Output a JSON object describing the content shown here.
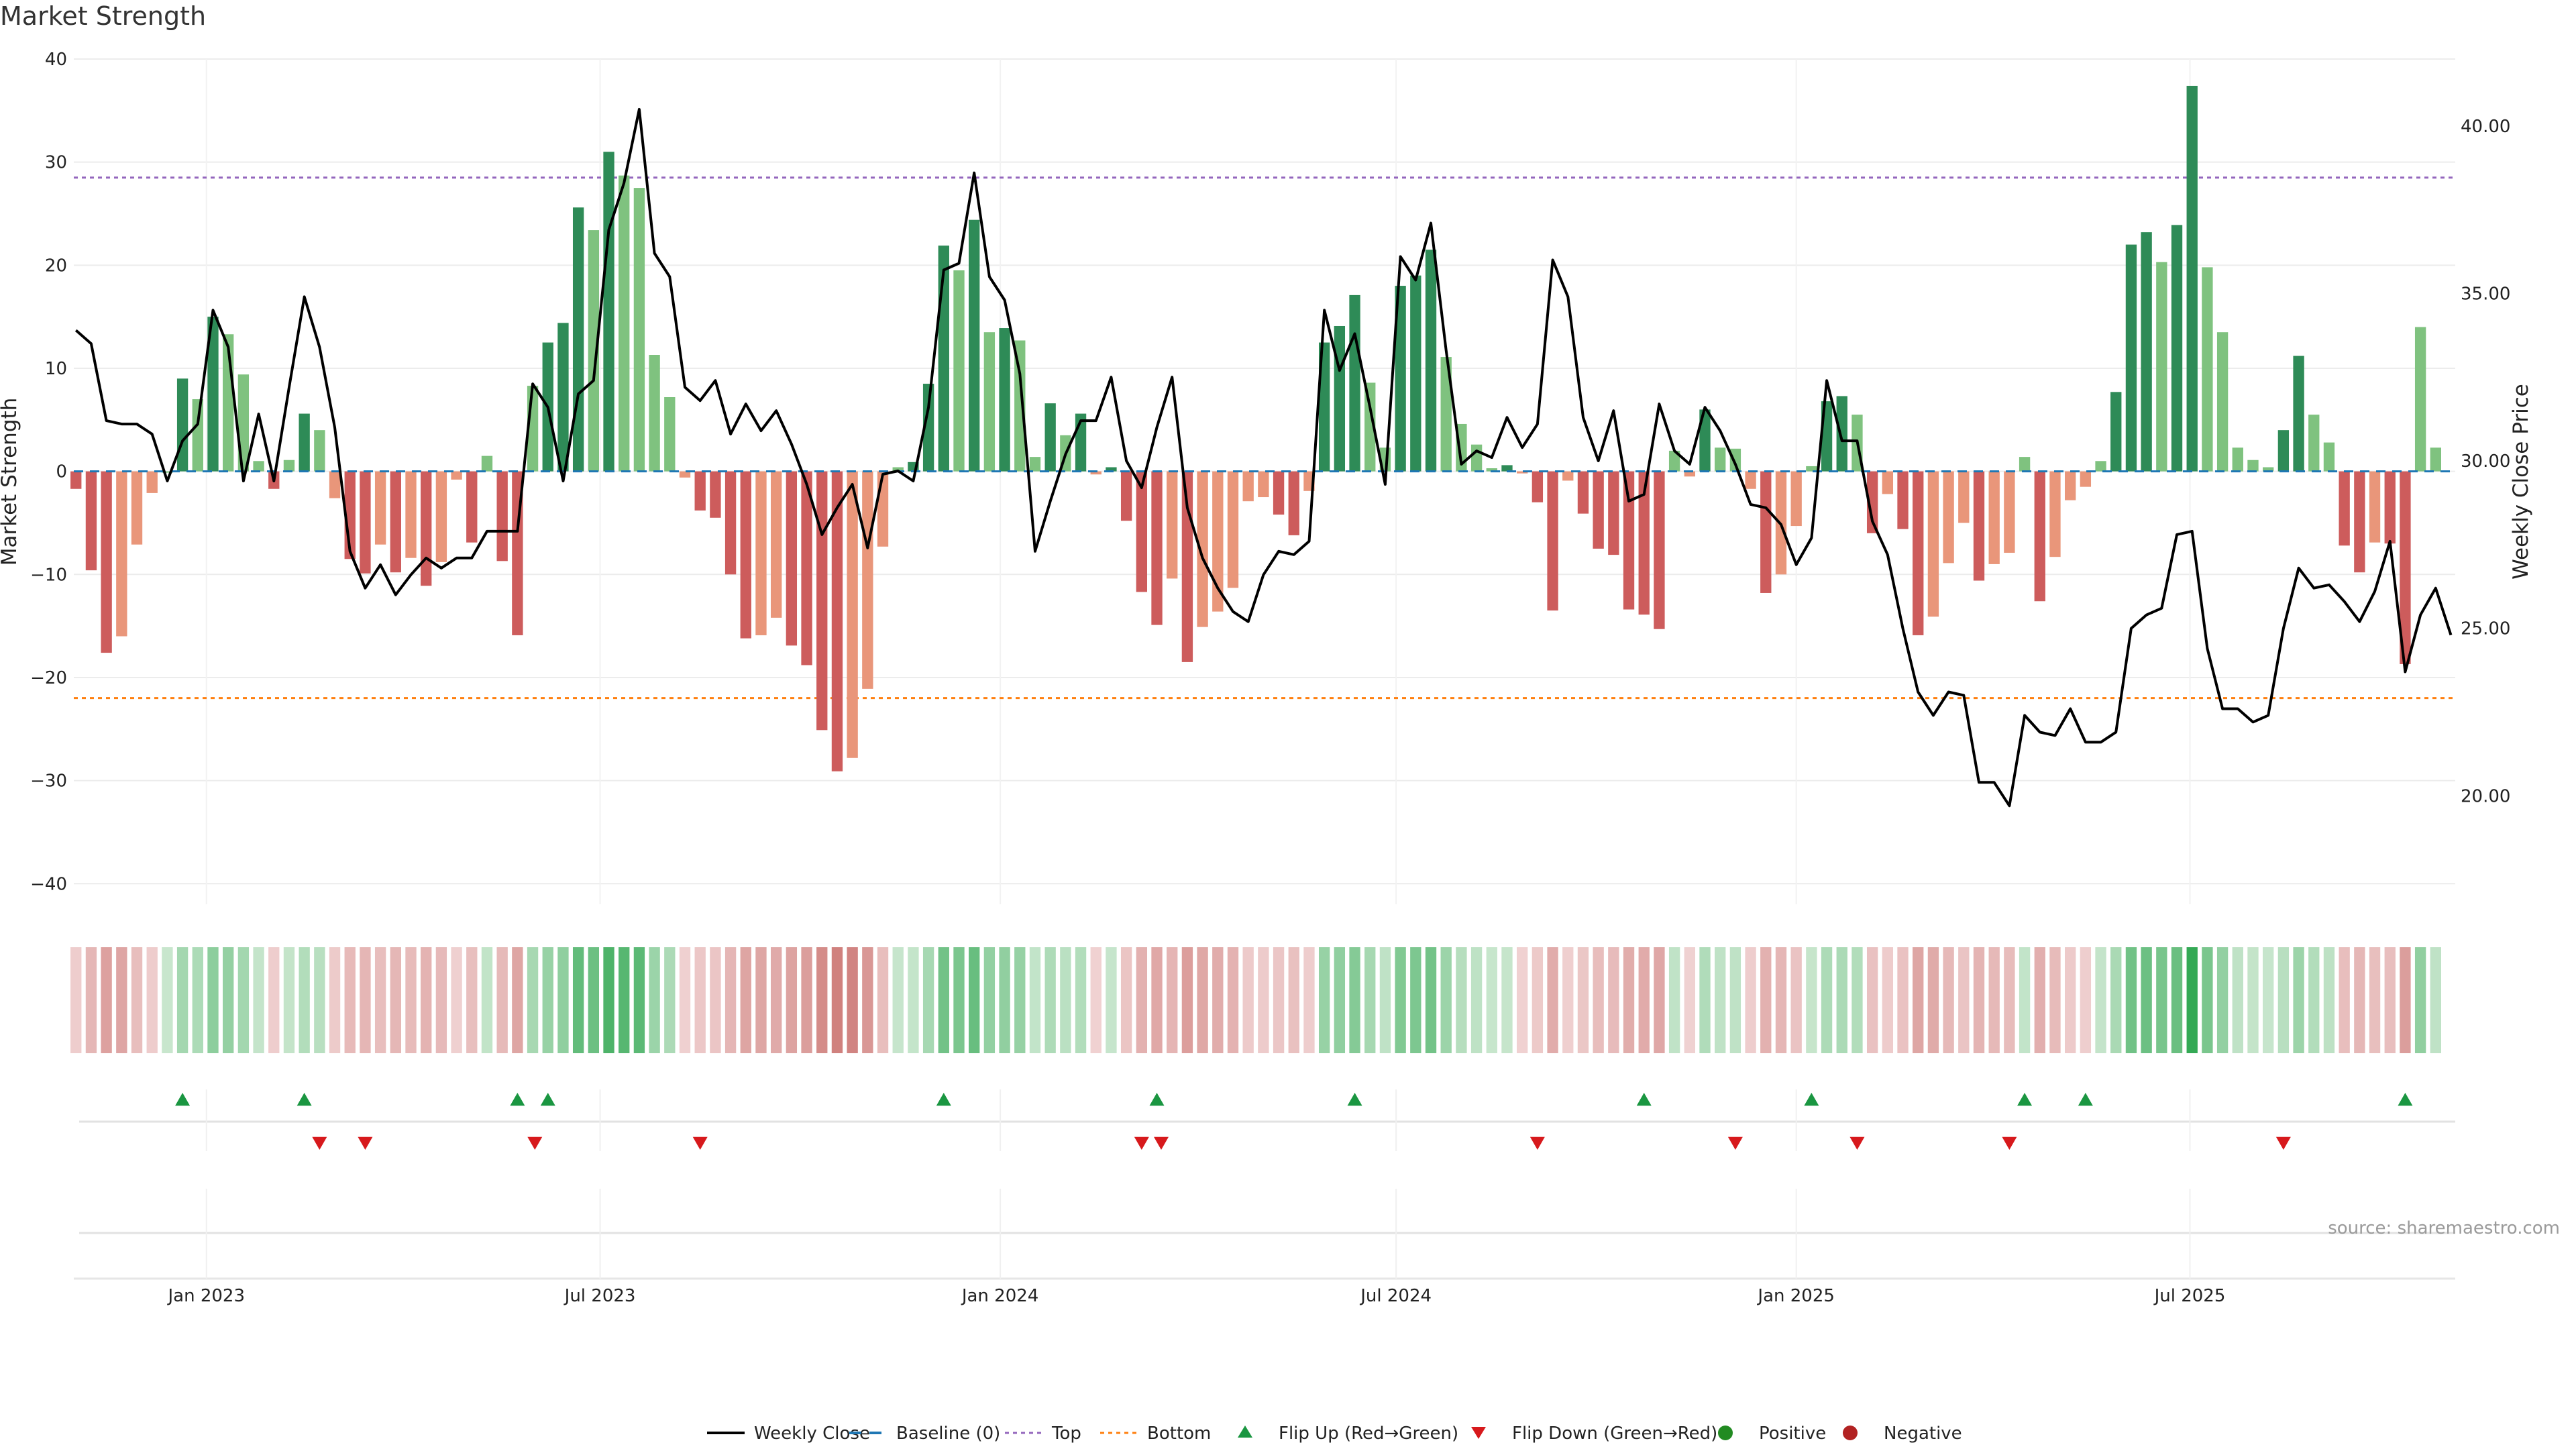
{
  "title": "Market Strength",
  "source": "source: sharemaestro.com",
  "chart_data": {
    "type": "bar",
    "title": "Market Strength",
    "ylabel": "Market Strength",
    "y2label": "Weekly Close Price",
    "ylim": [
      -42,
      40
    ],
    "y2lim": [
      16.76,
      42.0
    ],
    "x_start": "2022-11-01",
    "x_end": "2025-10-31",
    "x_ticks": [
      {
        "date": "2023-01-01",
        "label": "Jan 2023"
      },
      {
        "date": "2023-07-01",
        "label": "Jul 2023"
      },
      {
        "date": "2024-01-01",
        "label": "Jan 2024"
      },
      {
        "date": "2024-07-01",
        "label": "Jul 2024"
      },
      {
        "date": "2025-01-01",
        "label": "Jan 2025"
      },
      {
        "date": "2025-07-01",
        "label": "Jul 2025"
      }
    ],
    "y_ticks": [
      40,
      30,
      20,
      10,
      0,
      -10,
      -20,
      -30,
      -40
    ],
    "y2_ticks": [
      {
        "value": 40.0,
        "label": "40.00"
      },
      {
        "value": 35.0,
        "label": "35.00"
      },
      {
        "value": 30.0,
        "label": "30.00"
      },
      {
        "value": 25.0,
        "label": "25.00"
      },
      {
        "value": 20.0,
        "label": "20.00"
      }
    ],
    "top_level": 28.5,
    "bottom_level": -22.0,
    "grid": true,
    "colors": {
      "strong_pos": "#2e8b57",
      "weak_pos": "#7fc27f",
      "strong_neg": "#cd5c5c",
      "weak_neg": "#e9967a",
      "price": "#000000",
      "baseline": "#1f77b4",
      "top": "#9467bd",
      "bottom": "#ff7f0e",
      "flip_up": "#1a9641",
      "flip_down": "#d7191c",
      "positive": "#228b22",
      "negative": "#b22222"
    },
    "strength_start": "2022-11-02",
    "strength": [
      -1.7,
      -9.6,
      -17.6,
      -16.0,
      -7.1,
      -2.1,
      0,
      9.0,
      7.0,
      15.0,
      13.3,
      9.4,
      1.0,
      -1.7,
      1.1,
      5.6,
      4.0,
      -2.6,
      -8.5,
      -9.9,
      -7.1,
      -9.8,
      -8.4,
      -11.1,
      -8.8,
      -0.8,
      -6.9,
      1.5,
      -8.7,
      -15.9,
      8.3,
      12.5,
      14.4,
      25.6,
      23.4,
      31.0,
      28.7,
      27.5,
      11.3,
      7.2,
      -0.6,
      -3.8,
      -4.5,
      -10.0,
      -16.2,
      -15.9,
      -14.2,
      -16.9,
      -18.8,
      -25.1,
      -29.1,
      -27.8,
      -21.1,
      -7.3,
      0.4,
      0.9,
      8.5,
      21.9,
      19.5,
      24.4,
      13.5,
      13.9,
      12.7,
      1.4,
      6.6,
      3.5,
      5.6,
      -0.3,
      0.4,
      -4.8,
      -11.7,
      -14.9,
      -10.4,
      -18.5,
      -15.1,
      -13.6,
      -11.3,
      -2.9,
      -2.5,
      -4.2,
      -6.2,
      -1.9,
      12.5,
      14.1,
      17.1,
      8.6,
      2.3,
      18.0,
      19.0,
      21.5,
      11.1,
      4.6,
      2.6,
      0.3,
      0.6,
      -0.2,
      -3.0,
      -13.5,
      -0.9,
      -4.1,
      -7.5,
      -8.1,
      -13.4,
      -13.9,
      -15.3,
      2.0,
      -0.5,
      6.0,
      2.3,
      2.2,
      -1.7,
      -11.8,
      -10.0,
      -5.3,
      0.5,
      6.8,
      7.3,
      5.5,
      -6.0,
      -2.2,
      -5.6,
      -15.9,
      -14.1,
      -8.9,
      -5.0,
      -10.6,
      -9.0,
      -7.9,
      1.4,
      -12.6,
      -8.3,
      -2.8,
      -1.5,
      1.0,
      7.7,
      22.0,
      23.2,
      20.3,
      23.9,
      37.4,
      19.8,
      13.5,
      2.3,
      1.1,
      0.4,
      4.0,
      11.2,
      5.5,
      2.8,
      -7.2,
      -9.8,
      -6.9,
      -7.0,
      -18.7,
      14.0,
      2.3
    ],
    "price_start": "2022-11-02",
    "price": [
      33.9,
      33.5,
      31.2,
      31.1,
      31.1,
      30.8,
      29.4,
      30.6,
      31.1,
      34.5,
      33.4,
      29.4,
      31.4,
      29.4,
      32.2,
      34.9,
      33.4,
      31.0,
      27.3,
      26.2,
      26.9,
      26.0,
      26.6,
      27.1,
      26.8,
      27.1,
      27.1,
      27.9,
      27.9,
      27.9,
      32.3,
      31.6,
      29.4,
      32.0,
      32.4,
      36.9,
      38.3,
      40.5,
      36.2,
      35.5,
      32.2,
      31.8,
      32.4,
      30.8,
      31.7,
      30.9,
      31.5,
      30.5,
      29.3,
      27.8,
      28.6,
      29.3,
      27.4,
      29.6,
      29.7,
      29.4,
      31.6,
      35.7,
      35.9,
      38.6,
      35.5,
      34.8,
      32.6,
      27.3,
      28.8,
      30.2,
      31.2,
      31.2,
      32.5,
      30.0,
      29.2,
      31.0,
      32.5,
      28.6,
      27.1,
      26.2,
      25.5,
      25.2,
      26.6,
      27.3,
      27.2,
      27.6,
      34.5,
      32.7,
      33.8,
      31.6,
      29.3,
      36.1,
      35.4,
      37.1,
      33.3,
      29.9,
      30.3,
      30.1,
      31.3,
      30.4,
      31.1,
      36.0,
      34.9,
      31.3,
      30.0,
      31.5,
      28.8,
      29.0,
      31.7,
      30.3,
      29.9,
      31.6,
      30.9,
      29.9,
      28.7,
      28.6,
      28.1,
      26.9,
      27.7,
      32.4,
      30.6,
      30.6,
      28.2,
      27.2,
      25.0,
      23.1,
      22.4,
      23.1,
      23.0,
      20.4,
      20.4,
      19.7,
      22.4,
      21.9,
      21.8,
      22.6,
      21.6,
      21.6,
      21.9,
      25.0,
      25.4,
      25.6,
      27.8,
      27.9,
      24.4,
      22.6,
      22.6,
      22.2,
      22.4,
      25.0,
      26.8,
      26.2,
      26.3,
      25.8,
      25.2,
      26.1,
      27.6,
      23.7,
      25.4,
      26.2,
      24.8
    ],
    "flip_up": [
      "2022-12-21",
      "2023-02-15",
      "2023-05-24",
      "2023-06-07",
      "2023-12-06",
      "2024-03-13",
      "2024-06-12",
      "2024-10-23",
      "2025-01-08",
      "2025-04-16",
      "2025-05-14",
      "2025-10-08"
    ],
    "flip_down": [
      "2023-02-22",
      "2023-03-15",
      "2023-06-01",
      "2023-08-16",
      "2024-03-06",
      "2024-03-15",
      "2024-09-04",
      "2024-12-04",
      "2025-01-29",
      "2025-04-09",
      "2025-08-13"
    ]
  },
  "legend": [
    {
      "label": "Weekly Close",
      "kind": "line",
      "color": "#000000"
    },
    {
      "label": "Baseline (0)",
      "kind": "dash",
      "color": "#1f77b4"
    },
    {
      "label": "Top",
      "kind": "dot",
      "color": "#9467bd"
    },
    {
      "label": "Bottom",
      "kind": "dot",
      "color": "#ff7f0e"
    },
    {
      "label": "Flip Up (Red→Green)",
      "kind": "tri-up",
      "color": "#1a9641"
    },
    {
      "label": "Flip Down (Green→Red)",
      "kind": "tri-down",
      "color": "#d7191c"
    },
    {
      "label": "Positive",
      "kind": "circle",
      "color": "#228b22"
    },
    {
      "label": "Negative",
      "kind": "circle",
      "color": "#b22222"
    }
  ]
}
